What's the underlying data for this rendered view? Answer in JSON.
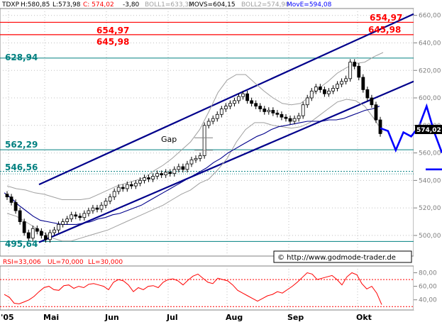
{
  "header": {
    "symbol": "TDXP",
    "high": "H:580,85",
    "low": "L:573,98",
    "close": "C: 574,02",
    "change": "-3,80",
    "boll1": "BOLL1=633,32",
    "movs": "MOVS=604,15",
    "boll2": "BOLL2=574,98",
    "move": "MovE=594,08"
  },
  "colors": {
    "price": "#000000",
    "bollinger": "#a0a0a0",
    "moving_average": "#00008b",
    "channel": "#00008b",
    "forecast": "#0000ff",
    "support": "#008080",
    "resistance": "#ff0000",
    "rsi": "#ff0000",
    "label_green": "#008080",
    "label_red": "#ff0000"
  },
  "levels": {
    "r1": "654,97",
    "r2": "645,98",
    "s1": "628,94",
    "s2": "562,29",
    "s3": "546,56",
    "s4": "495,64"
  },
  "annotations": {
    "gap": "Gap",
    "watermark": "© http://www.godmode-trader.de",
    "last_price": "574,02"
  },
  "rsi_header": {
    "rsi": "RSI=33,006",
    "ul": "UL=70,000",
    "ll": "LL=30,000"
  },
  "chart_data": [
    {
      "type": "line",
      "subtype": "candlestick",
      "x_ticks": [
        "'05",
        "Mai",
        "Jun",
        "Jul",
        "Aug",
        "Sep",
        "Okt"
      ],
      "y_ticks": [
        500,
        520,
        540,
        560,
        580,
        600,
        620,
        640,
        660
      ],
      "ylim": [
        485,
        665
      ],
      "series": [
        {
          "name": "TDXP",
          "values": [
            528,
            524,
            518,
            510,
            502,
            498,
            505,
            503,
            500,
            497,
            502,
            504,
            508,
            510,
            512,
            515,
            514,
            513,
            516,
            518,
            520,
            519,
            522,
            525,
            528,
            532,
            535,
            534,
            537,
            536,
            538,
            540,
            542,
            541,
            543,
            545,
            544,
            546,
            545,
            548,
            550,
            548,
            552,
            555,
            556,
            558,
            580,
            583,
            585,
            588,
            592,
            594,
            596,
            598,
            601,
            603,
            598,
            596,
            594,
            592,
            590,
            591,
            589,
            588,
            586,
            585,
            583,
            585,
            587,
            595,
            600,
            605,
            608,
            606,
            603,
            605,
            607,
            610,
            612,
            614,
            626,
            623,
            615,
            606,
            600,
            595,
            584,
            574
          ]
        },
        {
          "name": "MovE",
          "values": [
            531,
            527,
            522,
            518,
            514,
            511,
            510,
            509,
            508,
            508,
            508,
            509,
            510,
            512,
            513,
            515,
            516,
            518,
            520,
            522,
            525,
            528,
            531,
            534,
            537,
            540,
            543,
            546,
            549,
            553,
            556,
            560,
            563,
            566,
            569,
            572,
            574,
            577,
            579,
            580,
            581,
            582,
            583,
            583,
            583,
            584,
            584,
            585,
            587,
            589,
            591,
            592,
            594
          ]
        },
        {
          "name": "BOLL1",
          "values": [
            536,
            534,
            533,
            531,
            530,
            528,
            526,
            526,
            526,
            527,
            530,
            533,
            536,
            538,
            540,
            542,
            547,
            551,
            556,
            562,
            568,
            577,
            590,
            604,
            613,
            617,
            617,
            611,
            605,
            600,
            596,
            595,
            596,
            601,
            607,
            612,
            618,
            622,
            625,
            626,
            630,
            633
          ]
        },
        {
          "name": "BOLL2",
          "values": [
            516,
            514,
            510,
            506,
            502,
            498,
            496,
            496,
            498,
            500,
            502,
            504,
            507,
            510,
            513,
            516,
            519,
            522,
            526,
            530,
            533,
            538,
            541,
            548,
            556,
            568,
            577,
            582,
            582,
            580,
            579,
            578,
            579,
            582,
            587,
            592,
            597,
            599,
            598,
            594,
            585,
            575
          ]
        },
        {
          "name": "Forecast",
          "values": [
            578,
            576,
            562,
            575,
            572,
            579,
            594,
            575,
            560
          ]
        }
      ]
    },
    {
      "type": "line",
      "title": "RSI",
      "ylim": [
        25,
        90
      ],
      "y_ticks": [
        40,
        60,
        80
      ],
      "series": [
        {
          "name": "RSI",
          "values": [
            48,
            44,
            35,
            34,
            37,
            40,
            45,
            52,
            58,
            60,
            55,
            54,
            61,
            62,
            57,
            60,
            58,
            63,
            64,
            62,
            60,
            55,
            66,
            70,
            68,
            62,
            52,
            58,
            55,
            60,
            61,
            58,
            66,
            70,
            71,
            68,
            62,
            69,
            75,
            78,
            72,
            66,
            64,
            72,
            70,
            68,
            62,
            54,
            50,
            46,
            42,
            38,
            42,
            46,
            48,
            52,
            50,
            55,
            60,
            66,
            73,
            80,
            78,
            70,
            72,
            74,
            76,
            70,
            62,
            74,
            80,
            77,
            64,
            56,
            60,
            50,
            33
          ]
        }
      ]
    }
  ]
}
